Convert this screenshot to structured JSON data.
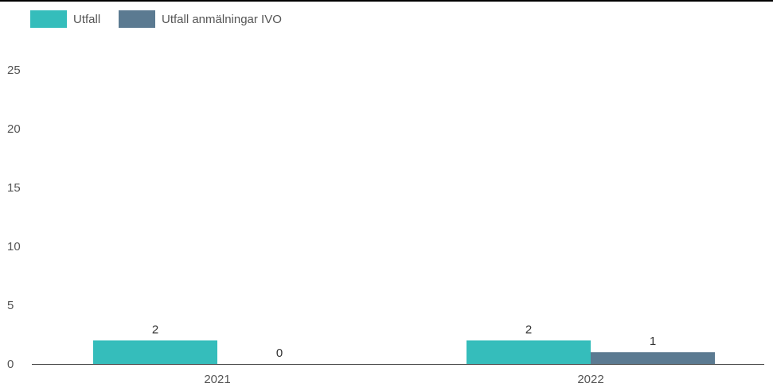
{
  "chart_data": {
    "type": "bar",
    "categories": [
      "2021",
      "2022"
    ],
    "series": [
      {
        "name": "Utfall",
        "values": [
          2,
          2
        ],
        "color": "#35bdbb"
      },
      {
        "name": "Utfall anmälningar IVO",
        "values": [
          0,
          1
        ],
        "color": "#5b7a91"
      }
    ],
    "ylim": [
      0,
      27.5
    ],
    "yticks": [
      0,
      5,
      10,
      15,
      20,
      25
    ],
    "legend_position": "top-left",
    "grid": false,
    "data_labels": true
  }
}
